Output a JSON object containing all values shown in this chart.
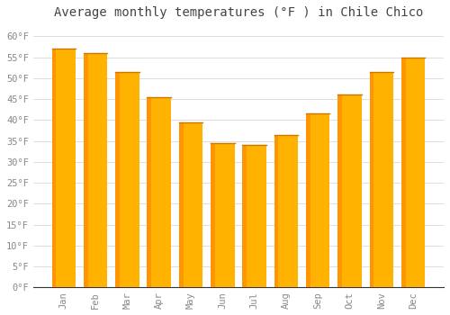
{
  "title": "Average monthly temperatures (°F ) in Chile Chico",
  "months": [
    "Jan",
    "Feb",
    "Mar",
    "Apr",
    "May",
    "Jun",
    "Jul",
    "Aug",
    "Sep",
    "Oct",
    "Nov",
    "Dec"
  ],
  "values": [
    57,
    56,
    51.5,
    45.5,
    39.5,
    34.5,
    34,
    36.5,
    41.5,
    46,
    51.5,
    55
  ],
  "bar_color_main": "#FFB300",
  "bar_color_left": "#FF9500",
  "bar_color_top": "#CC7700",
  "background_color": "#FFFFFF",
  "grid_color": "#DDDDDD",
  "text_color": "#888888",
  "axis_color": "#333333",
  "ylim": [
    0,
    63
  ],
  "yticks": [
    0,
    5,
    10,
    15,
    20,
    25,
    30,
    35,
    40,
    45,
    50,
    55,
    60
  ],
  "ytick_labels": [
    "0°F",
    "5°F",
    "10°F",
    "15°F",
    "20°F",
    "25°F",
    "30°F",
    "35°F",
    "40°F",
    "45°F",
    "50°F",
    "55°F",
    "60°F"
  ],
  "title_fontsize": 10,
  "tick_fontsize": 7.5,
  "font_family": "monospace"
}
